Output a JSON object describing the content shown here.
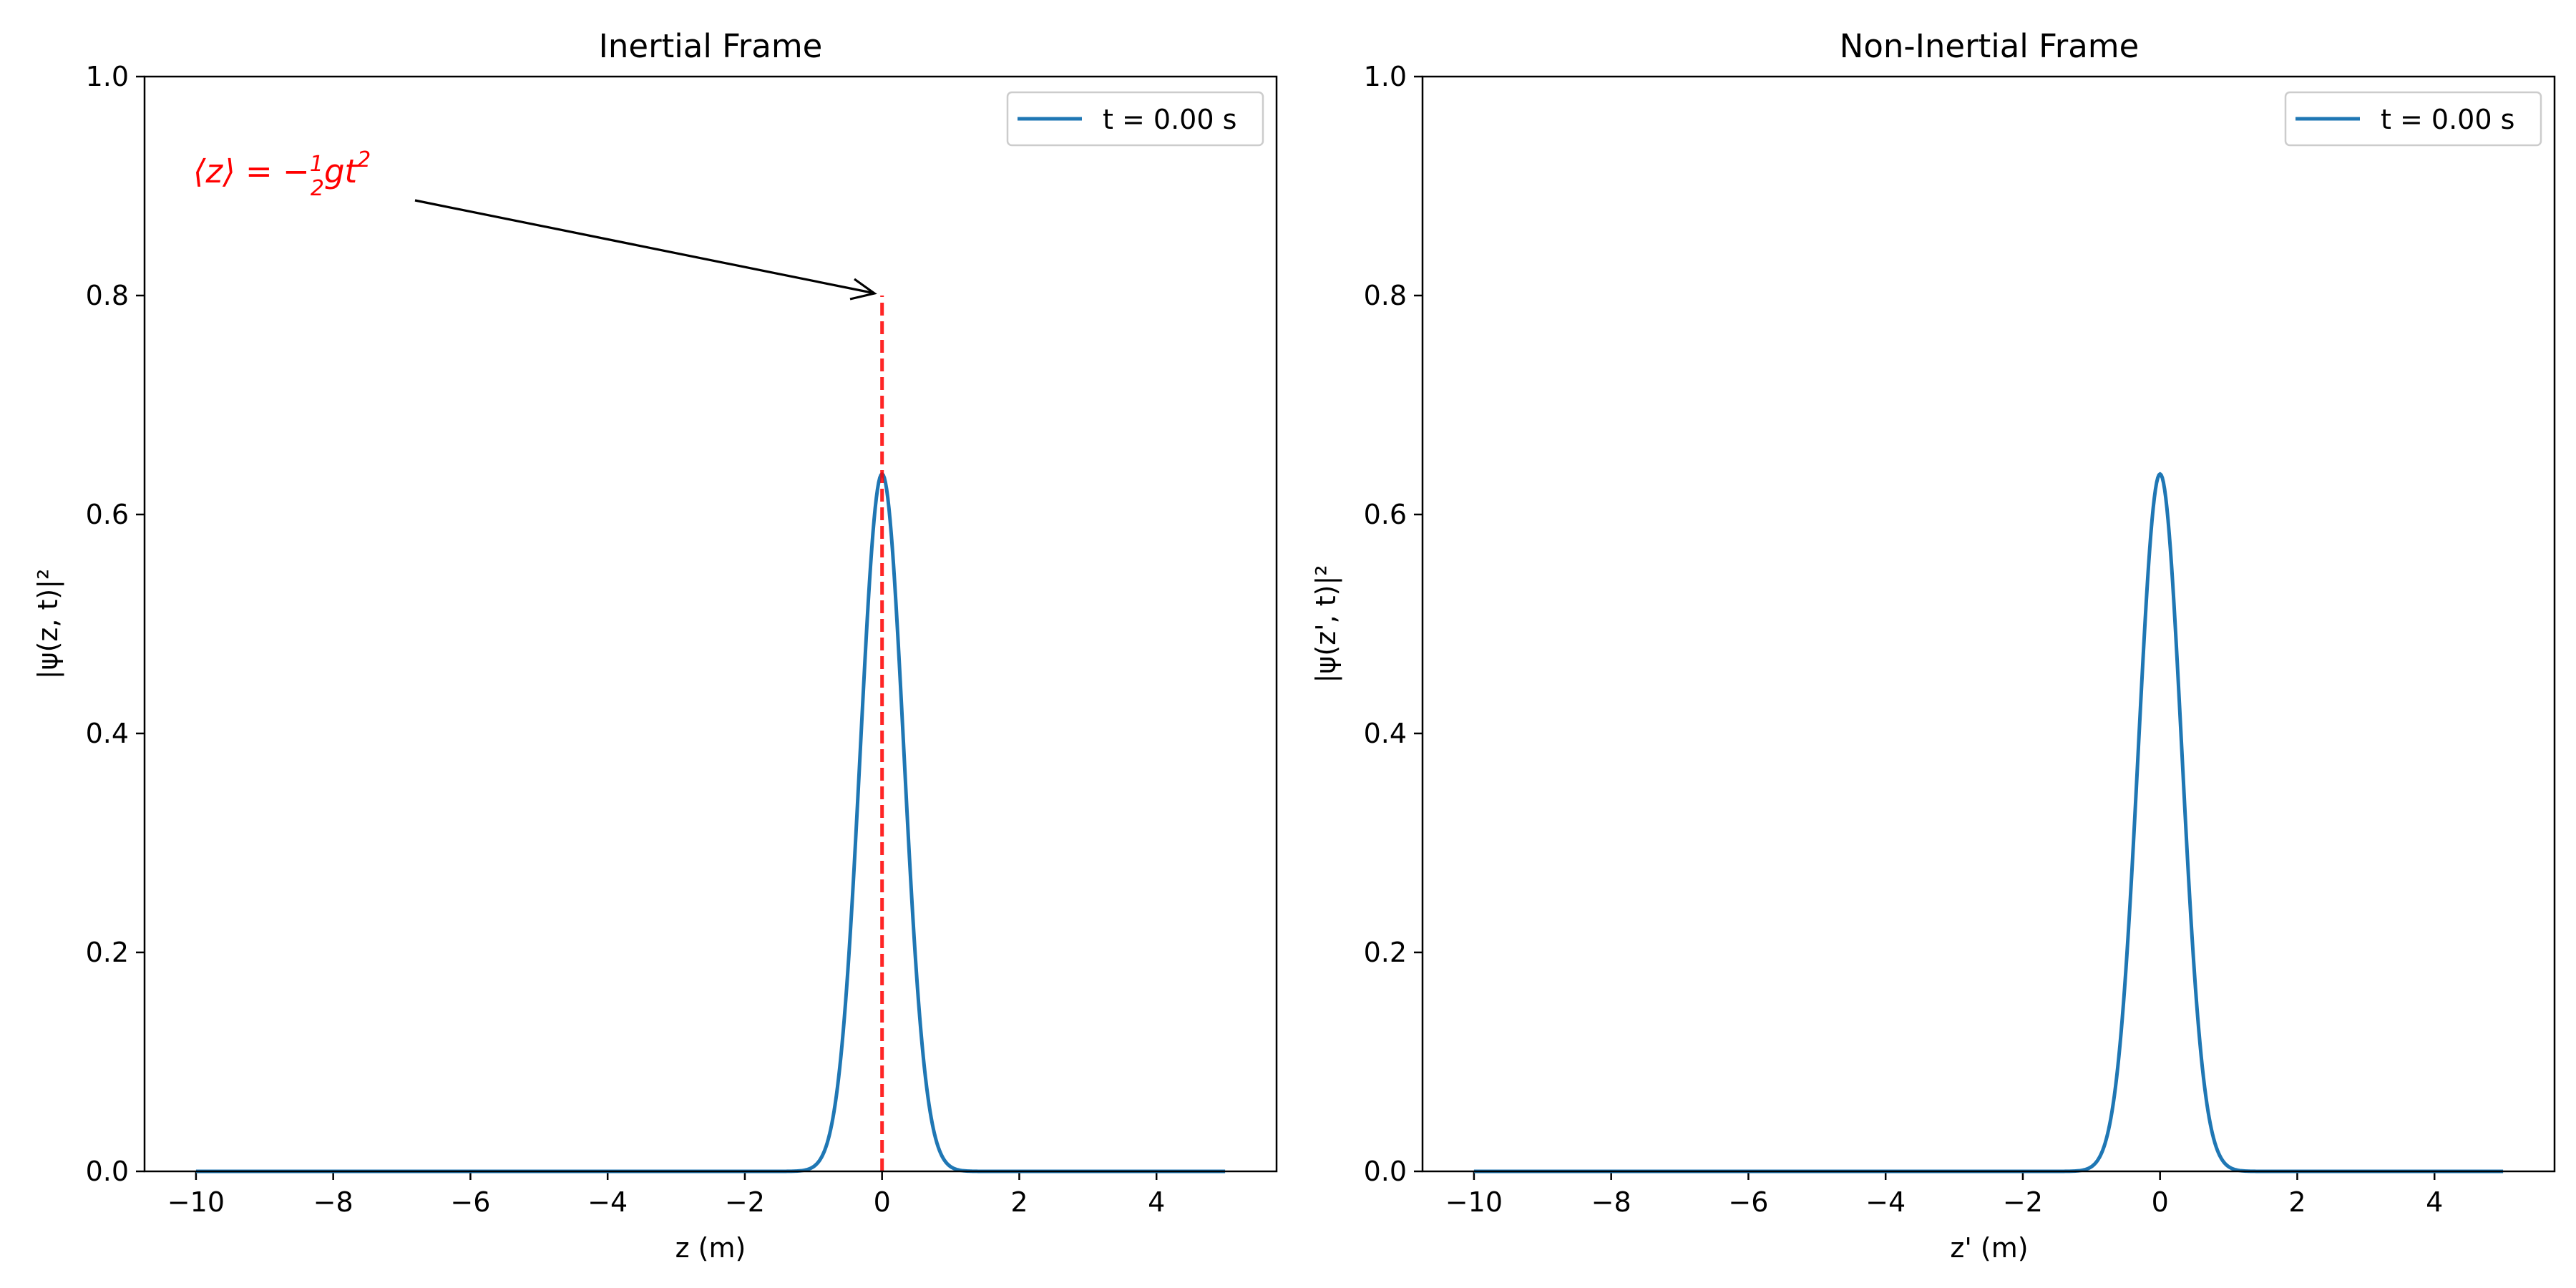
{
  "colors": {
    "series": "#1f77b4",
    "marker": "#ff0000",
    "annotation_text": "#ff0000",
    "axis": "#000000",
    "background": "#ffffff"
  },
  "chart_data": [
    {
      "type": "line",
      "title": "Inertial Frame",
      "xlabel": "z (m)",
      "ylabel": "|ψ(z, t)|²",
      "xlim": [
        -10.75,
        5.75
      ],
      "ylim": [
        0.0,
        1.0
      ],
      "xticks": [
        -10,
        -8,
        -6,
        -4,
        -2,
        0,
        2,
        4
      ],
      "xtick_labels": [
        "−10",
        "−8",
        "−6",
        "−4",
        "−2",
        "0",
        "2",
        "4"
      ],
      "yticks": [
        0.0,
        0.2,
        0.4,
        0.6,
        0.8,
        1.0
      ],
      "ytick_labels": [
        "0.0",
        "0.2",
        "0.4",
        "0.6",
        "0.8",
        "1.0"
      ],
      "grid": false,
      "legend_position": "top-right",
      "series": [
        {
          "name": "t = 0.00 s",
          "kind": "gaussian",
          "peak": 0.637,
          "center": 0.0,
          "sigma": 0.316,
          "x_range": [
            -10,
            5
          ]
        }
      ],
      "vline": {
        "x": 0.0,
        "y_range": [
          0.0,
          0.8
        ],
        "style": "dashed"
      },
      "annotation": {
        "text_prefix": "⟨z⟩ = −",
        "fraction_num": "1",
        "fraction_den": "2",
        "text_suffix": "gt",
        "superscript": "2",
        "text_anchor": [
          -10.0,
          0.9
        ],
        "arrow_to": [
          0.0,
          0.8
        ]
      }
    },
    {
      "type": "line",
      "title": "Non-Inertial Frame",
      "xlabel": "z' (m)",
      "ylabel": "|ψ(z', t)|²",
      "xlim": [
        -10.75,
        5.75
      ],
      "ylim": [
        0.0,
        1.0
      ],
      "xticks": [
        -10,
        -8,
        -6,
        -4,
        -2,
        0,
        2,
        4
      ],
      "xtick_labels": [
        "−10",
        "−8",
        "−6",
        "−4",
        "−2",
        "0",
        "2",
        "4"
      ],
      "yticks": [
        0.0,
        0.2,
        0.4,
        0.6,
        0.8,
        1.0
      ],
      "ytick_labels": [
        "0.0",
        "0.2",
        "0.4",
        "0.6",
        "0.8",
        "1.0"
      ],
      "grid": false,
      "legend_position": "top-right",
      "series": [
        {
          "name": "t = 0.00 s",
          "kind": "gaussian",
          "peak": 0.637,
          "center": 0.0,
          "sigma": 0.316,
          "x_range": [
            -10,
            5
          ]
        }
      ]
    }
  ]
}
